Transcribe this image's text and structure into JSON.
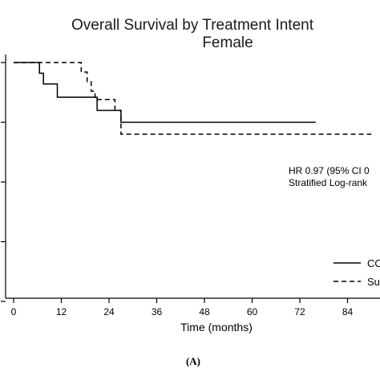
{
  "chart_data": {
    "type": "line",
    "subtype": "kaplan-meier step",
    "title": "Overall Survival by Treatment Intent",
    "subtitle": "Female",
    "xlabel": "Time (months)",
    "x_ticks": [
      "0",
      "12",
      "24",
      "36",
      "48",
      "60",
      "72",
      "84"
    ],
    "xlim": [
      0,
      90
    ],
    "ylim": [
      0,
      1.05
    ],
    "y_tick_values": [
      0,
      0.25,
      0.5,
      0.75,
      1.0
    ],
    "grid": false,
    "legend_position": "bottom-right",
    "series": [
      {
        "name": "CO",
        "style": "solid",
        "color": "#000000",
        "points": [
          [
            0,
            1.0
          ],
          [
            6.5,
            1.0
          ],
          [
            6.5,
            0.955
          ],
          [
            7.5,
            0.955
          ],
          [
            7.5,
            0.91
          ],
          [
            11,
            0.91
          ],
          [
            11,
            0.855
          ],
          [
            21,
            0.855
          ],
          [
            21,
            0.8
          ],
          [
            27,
            0.8
          ],
          [
            27,
            0.75
          ],
          [
            76,
            0.75
          ]
        ]
      },
      {
        "name": "Su",
        "style": "dashed",
        "color": "#000000",
        "points": [
          [
            0,
            1.0
          ],
          [
            17,
            1.0
          ],
          [
            17,
            0.96
          ],
          [
            18.5,
            0.96
          ],
          [
            18.5,
            0.92
          ],
          [
            19.5,
            0.92
          ],
          [
            19.5,
            0.88
          ],
          [
            20.5,
            0.88
          ],
          [
            20.5,
            0.845
          ],
          [
            25.5,
            0.845
          ],
          [
            25.5,
            0.8
          ],
          [
            27,
            0.8
          ],
          [
            27,
            0.7
          ],
          [
            90,
            0.7
          ]
        ]
      }
    ],
    "annotations": [
      "HR 0.97 (95% CI 0",
      "Stratified Log-rank"
    ]
  },
  "panel_label": "(A)"
}
